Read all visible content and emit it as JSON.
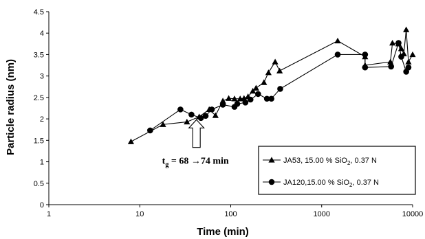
{
  "chart_data": {
    "type": "line",
    "xlabel": "Time (min)",
    "ylabel": "Particle radius (nm)",
    "xscale": "log",
    "xlim": [
      1,
      10000
    ],
    "ylim": [
      0,
      4.5
    ],
    "xticks": [
      1,
      10,
      100,
      1000,
      10000
    ],
    "xtick_labels": [
      "1",
      "10",
      "100",
      "1000",
      "10000"
    ],
    "yticks": [
      0,
      0.5,
      1,
      1.5,
      2,
      2.5,
      3,
      3.5,
      4,
      4.5
    ],
    "ytick_labels": [
      "0",
      "0.5",
      "1",
      "1.5",
      "2",
      "2.5",
      "3",
      "3.5",
      "4",
      "4.5"
    ],
    "grid": false,
    "legend_position": "bottom-right",
    "series": [
      {
        "name": "JA53, 15.00 % SiO2, 0.37 N",
        "legend_parts": {
          "pre": "JA53, 15.00 % SiO",
          "sub": "2",
          "post": ", 0.37 N"
        },
        "marker": "triangle",
        "x": [
          8,
          18,
          33,
          45,
          58,
          68,
          82,
          95,
          110,
          127,
          140,
          155,
          175,
          190,
          232,
          260,
          308,
          345,
          1500,
          3000,
          3000,
          5700,
          6000,
          7000,
          7500,
          8000,
          8500,
          9000,
          10000
        ],
        "y": [
          1.47,
          1.87,
          1.93,
          2.05,
          2.22,
          2.08,
          2.42,
          2.48,
          2.47,
          2.47,
          2.48,
          2.52,
          2.65,
          2.72,
          2.85,
          3.08,
          3.33,
          3.12,
          3.82,
          3.45,
          3.25,
          3.33,
          3.77,
          3.75,
          3.64,
          3.52,
          4.08,
          3.33,
          3.5
        ]
      },
      {
        "name": "JA120,15.00 % SiO2, 0.37 N",
        "legend_parts": {
          "pre": "JA120,15.00 % SiO",
          "sub": "2",
          "post": ", 0.37 N"
        },
        "marker": "circle",
        "x": [
          13,
          28,
          37,
          47,
          53,
          62,
          82,
          110,
          118,
          145,
          165,
          200,
          250,
          280,
          350,
          1500,
          3000,
          3000,
          5800,
          7000,
          7500,
          8500,
          9000
        ],
        "y": [
          1.73,
          2.22,
          2.1,
          2.02,
          2.07,
          2.22,
          2.33,
          2.28,
          2.35,
          2.38,
          2.45,
          2.58,
          2.47,
          2.47,
          2.7,
          3.5,
          3.5,
          3.2,
          3.22,
          3.77,
          3.45,
          3.1,
          3.2
        ]
      }
    ],
    "annotation": {
      "prefix": "t",
      "sub": "g",
      "text": " = 68 →74 min",
      "arrow": "up",
      "x": 42,
      "y": 1.27
    }
  }
}
